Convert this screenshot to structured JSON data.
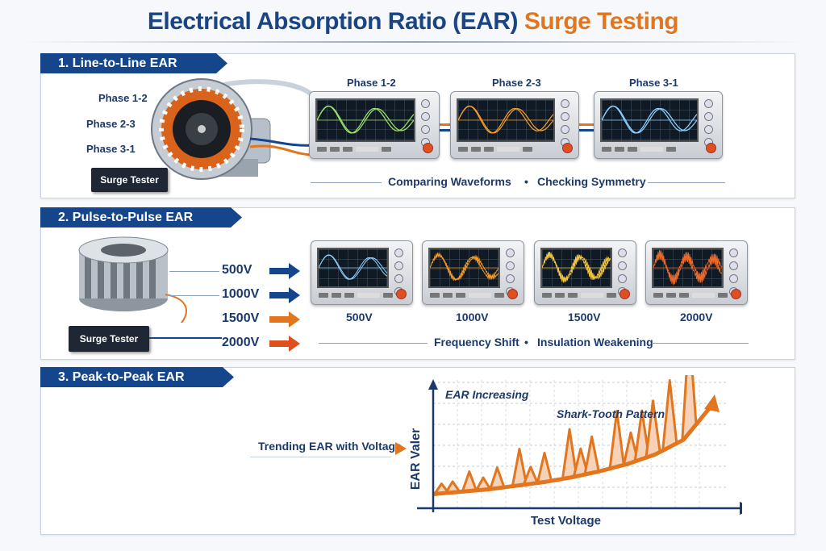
{
  "title": {
    "part1": "Electrical Absorption Ratio (EAR)",
    "part2": "Surge Testing"
  },
  "colors": {
    "blue": "#15468c",
    "orange": "#e2761f",
    "green": "#9de06a",
    "amber": "#f59a2a",
    "lightblue": "#8fd0ff",
    "red": "#e0501f"
  },
  "section1": {
    "heading": "1. Line-to-Line EAR",
    "motor_labels": [
      "Phase 1-2",
      "Phase 2-3",
      "Phase 3-1"
    ],
    "tester": "Surge Tester",
    "scopes": [
      {
        "label": "Phase 1-2"
      },
      {
        "label": "Phase 2-3"
      },
      {
        "label": "Phase 3-1"
      }
    ],
    "caption": [
      "Comparing Waveforms",
      "Checking Symmetry"
    ]
  },
  "section2": {
    "heading": "2. Pulse-to-Pulse EAR",
    "voltages": [
      "500V",
      "1000V",
      "1500V",
      "2000V"
    ],
    "tester": "Surge Tester",
    "scope_labels": [
      "500V",
      "1000V",
      "1500V",
      "2000V"
    ],
    "caption": [
      "Frequency Shift",
      "Insulation Weakening"
    ]
  },
  "section3": {
    "heading": "3. Peak-to-Peak EAR",
    "trend_label": "Trending EAR with Voltage"
  },
  "chart_data": {
    "type": "line",
    "xlabel": "Test Voltage",
    "ylabel": "EAR Valer",
    "annotations": [
      "EAR Increasing",
      "Shark-Tooth Pattern"
    ],
    "baseline": [
      0.05,
      0.07,
      0.09,
      0.12,
      0.15,
      0.19,
      0.24,
      0.3,
      0.38,
      0.5,
      0.78
    ],
    "spikes": [
      {
        "x": 0.3,
        "h": 0.08
      },
      {
        "x": 0.7,
        "h": 0.09
      },
      {
        "x": 1.3,
        "h": 0.16
      },
      {
        "x": 1.8,
        "h": 0.1
      },
      {
        "x": 2.3,
        "h": 0.17
      },
      {
        "x": 3.1,
        "h": 0.3
      },
      {
        "x": 3.5,
        "h": 0.14
      },
      {
        "x": 4.0,
        "h": 0.24
      },
      {
        "x": 4.9,
        "h": 0.4
      },
      {
        "x": 5.3,
        "h": 0.22
      },
      {
        "x": 5.7,
        "h": 0.3
      },
      {
        "x": 6.6,
        "h": 0.46
      },
      {
        "x": 7.1,
        "h": 0.25
      },
      {
        "x": 7.5,
        "h": 0.4
      },
      {
        "x": 7.9,
        "h": 0.45
      },
      {
        "x": 8.5,
        "h": 0.55
      },
      {
        "x": 9.2,
        "h": 0.86
      }
    ]
  }
}
